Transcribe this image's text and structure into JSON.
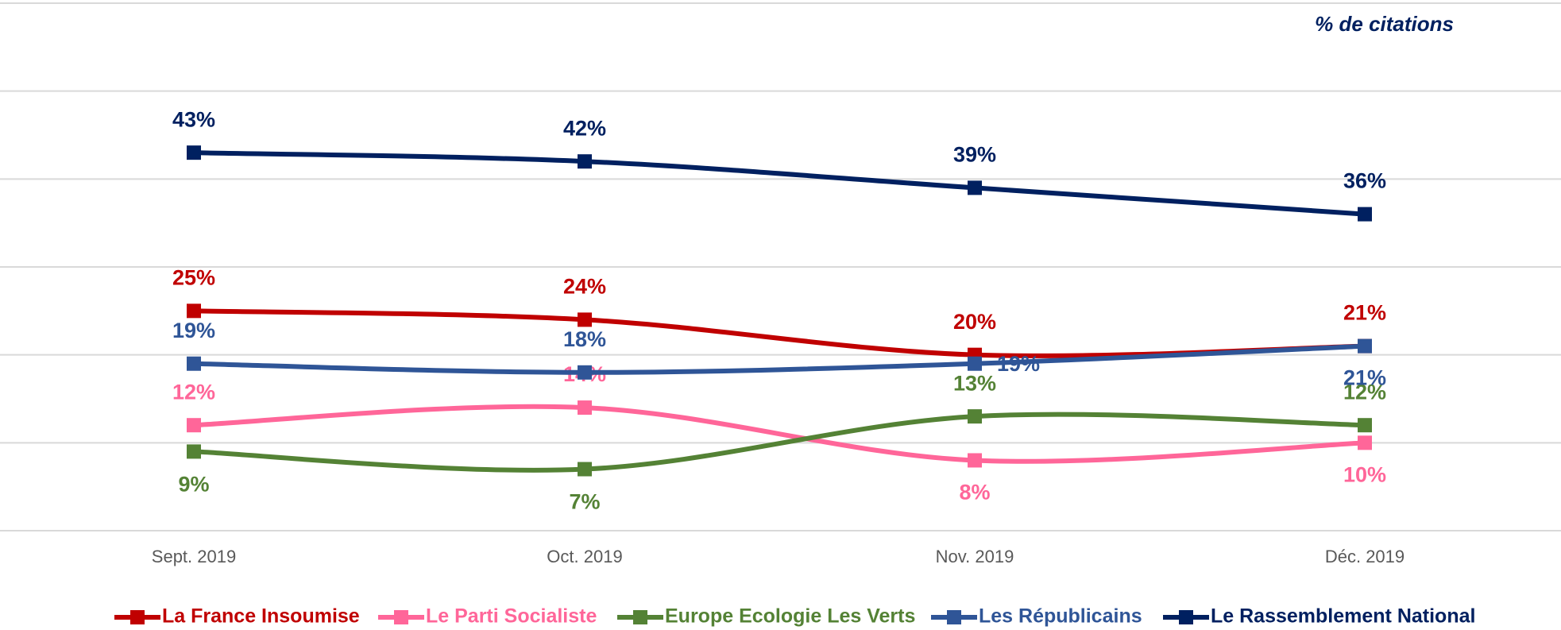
{
  "chart_data": {
    "type": "line",
    "annotation": "% de citations",
    "categories": [
      "Sept. 2019",
      "Oct. 2019",
      "Nov. 2019",
      "Déc. 2019"
    ],
    "series": [
      {
        "name": "La France Insoumise",
        "color": "#c00000",
        "values": [
          25,
          24,
          20,
          21
        ],
        "value_labels": [
          "25%",
          "24%",
          "20%",
          "21%"
        ]
      },
      {
        "name": "Le Parti Socialiste",
        "color": "#ff6699",
        "values": [
          12,
          14,
          8,
          10
        ],
        "value_labels": [
          "12%",
          "14%",
          "8%",
          "10%"
        ]
      },
      {
        "name": "Europe Ecologie Les Verts",
        "color": "#548235",
        "values": [
          9,
          7,
          13,
          12
        ],
        "value_labels": [
          "9%",
          "7%",
          "13%",
          "12%"
        ]
      },
      {
        "name": "Les Républicains",
        "color": "#2f5597",
        "values": [
          19,
          18,
          19,
          21
        ],
        "value_labels": [
          "19%",
          "18%",
          "19%",
          "21%"
        ]
      },
      {
        "name": "Le Rassemblement National",
        "color": "#002060",
        "values": [
          43,
          42,
          39,
          36
        ],
        "value_labels": [
          "43%",
          "42%",
          "39%",
          "36%"
        ]
      }
    ],
    "ylim": [
      0,
      60
    ],
    "yticks": [
      0,
      10,
      20,
      30,
      40,
      50,
      60
    ],
    "grid": true,
    "legend": "bottom"
  }
}
